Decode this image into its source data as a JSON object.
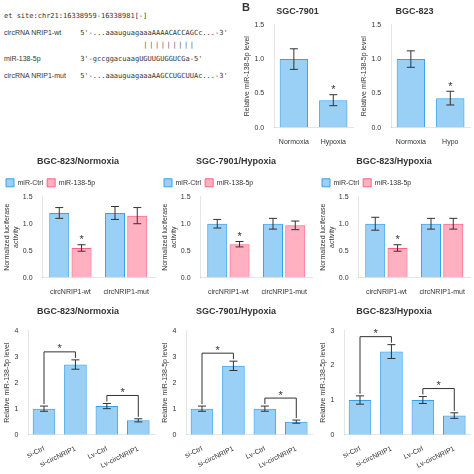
{
  "chart_data": [
    {
      "type": "text",
      "annotations": [
        {
          "text": "et site:chr21:16338959-16338981[-]"
        },
        {
          "label": "circRNA NRIP1-wt",
          "text": "5'-...aaauguagaaaAAAACACCAGCc...-3'"
        },
        {
          "text": "|||||||||"
        },
        {
          "label": "miR-138-5p",
          "text": "3'-gccggacuaagUGUUGUGGUCGa-5'"
        },
        {
          "label": "circRNA NRIP1-mut",
          "text": "5'-...aaauguagaaaAAGCCUGCUUAc...-3'"
        }
      ]
    },
    {
      "type": "bar",
      "title": "SGC-7901",
      "y_label": "Relative miR-138-5p level",
      "categories": [
        "Normoxia",
        "Hypoxia"
      ],
      "values": [
        1.0,
        0.4
      ],
      "errors": [
        0.15,
        0.08
      ],
      "ylim": [
        0,
        1.5
      ],
      "yticks": [
        {
          "value": 0,
          "label": "0.0"
        },
        0.5,
        {
          "value": 1,
          "label": "1.0"
        },
        1.5
      ],
      "grid": false,
      "annotations": [
        {
          "text": "B"
        },
        {
          "text": "*",
          "category": "Hypoxia"
        }
      ]
    },
    {
      "type": "bar",
      "title": "BGC-823",
      "y_label": "Relative miR-138-5p level",
      "categories": [
        "Normoxia",
        "Hypo"
      ],
      "values": [
        1.0,
        0.43
      ],
      "errors": [
        0.12,
        0.1
      ],
      "ylim": [
        0,
        1.5
      ],
      "yticks": [
        {
          "value": 0,
          "label": "0.0"
        },
        0.5,
        {
          "value": 1,
          "label": "1.0"
        },
        1.5
      ],
      "grid": false,
      "annotations": [
        {
          "text": "*",
          "category": "Hypo"
        }
      ]
    },
    {
      "type": "bar",
      "title": "BGC-823/Normoxia",
      "y_label": "Normalized luciferase\nactivity",
      "categories": [
        "circNRIP1-wt",
        "circNRIP1-mut"
      ],
      "series": [
        {
          "name": "miR-Ctrl",
          "values": [
            1.2,
            1.2
          ],
          "errors": [
            0.1,
            0.12
          ]
        },
        {
          "name": "miR-138-5p",
          "values": [
            0.55,
            1.15
          ],
          "errors": [
            0.06,
            0.15
          ]
        }
      ],
      "ylim": [
        0,
        1.5
      ],
      "yticks": [
        {
          "value": 0,
          "label": "0.0"
        },
        0.5,
        {
          "value": 1,
          "label": "1.0"
        },
        1.5
      ],
      "grid": false,
      "legend": "upper left",
      "annotations": [
        {
          "text": "*",
          "category": "circNRIP1-wt",
          "series": "miR-138-5p"
        }
      ]
    },
    {
      "type": "bar",
      "title": "SGC-7901/Hypoxia",
      "y_label": "Normalized luciferase\nactivity",
      "categories": [
        "circNRIP1-wt",
        "circNRIP1-mut"
      ],
      "series": [
        {
          "name": "miR-Ctrl",
          "values": [
            1.0,
            1.0
          ],
          "errors": [
            0.08,
            0.1
          ]
        },
        {
          "name": "miR-138-5p",
          "values": [
            0.62,
            0.97
          ],
          "errors": [
            0.05,
            0.08
          ]
        }
      ],
      "ylim": [
        0,
        1.5
      ],
      "yticks": [
        {
          "value": 0,
          "label": "0.0"
        },
        0.5,
        {
          "value": 1,
          "label": "1.0"
        },
        1.5
      ],
      "grid": false,
      "legend": "upper left",
      "annotations": [
        {
          "text": "*",
          "category": "circNRIP1-wt",
          "series": "miR-138-5p"
        }
      ]
    },
    {
      "type": "bar",
      "title": "BGC-823/Hypoxia",
      "y_label": "Normalized luciferase\nactivity",
      "categories": [
        "circNRIP1-wt",
        "circNRIP1-mut"
      ],
      "series": [
        {
          "name": "miR-Ctrl",
          "values": [
            1.0,
            1.0
          ],
          "errors": [
            0.12,
            0.1
          ]
        },
        {
          "name": "miR-138-5p",
          "values": [
            0.55,
            1.0
          ],
          "errors": [
            0.06,
            0.1
          ]
        }
      ],
      "ylim": [
        0,
        1.5
      ],
      "yticks": [
        {
          "value": 0,
          "label": "0.0"
        },
        0.5,
        {
          "value": 1,
          "label": "1.0"
        },
        1.5
      ],
      "grid": false,
      "legend": "upper left",
      "annotations": [
        {
          "text": "*",
          "category": "circNRIP1-wt",
          "series": "miR-138-5p"
        }
      ]
    },
    {
      "type": "bar",
      "title": "BGC-823/Normoxia",
      "y_label": "Relative miR-138-5p level",
      "categories": [
        "si-Ctrl",
        "si-circNRIP1",
        "Lv-Ctrl",
        "Lv-circNRIP1"
      ],
      "values": [
        1.0,
        2.7,
        1.1,
        0.55
      ],
      "errors": [
        0.1,
        0.18,
        0.1,
        0.06
      ],
      "ylim": [
        0,
        4.0
      ],
      "yticks": [
        0,
        1,
        2,
        3,
        4
      ],
      "grid": false,
      "annotations": [
        {
          "text": "*",
          "bracket": [
            "si-Ctrl",
            "si-circNRIP1"
          ]
        },
        {
          "text": "*",
          "bracket": [
            "Lv-Ctrl",
            "Lv-circNRIP1"
          ]
        }
      ]
    },
    {
      "type": "bar",
      "title": "SGC-7901/Hypoxia",
      "y_label": "Relative miR-138-5p level",
      "categories": [
        "si-Ctrl",
        "si-circNRIP1",
        "Lv-Ctrl",
        "Lv-circNRIP1"
      ],
      "values": [
        1.0,
        2.65,
        1.0,
        0.5
      ],
      "errors": [
        0.1,
        0.18,
        0.1,
        0.06
      ],
      "ylim": [
        0,
        4.0
      ],
      "yticks": [
        0,
        1,
        2,
        3,
        4
      ],
      "grid": false,
      "annotations": [
        {
          "text": "*",
          "bracket": [
            "si-Ctrl",
            "si-circNRIP1"
          ]
        },
        {
          "text": "*",
          "bracket": [
            "Lv-Ctrl",
            "Lv-circNRIP1"
          ]
        }
      ]
    },
    {
      "type": "bar",
      "title": "BGC-823/Hypoxia",
      "y_label": "Relative miR-138-5p level",
      "categories": [
        "si-Ctrl",
        "si-circNRIP1",
        "Lv-Ctrl",
        "Lv-circNRIP1"
      ],
      "values": [
        1.0,
        2.4,
        1.0,
        0.55
      ],
      "errors": [
        0.12,
        0.2,
        0.1,
        0.08
      ],
      "ylim": [
        0,
        3.0
      ],
      "yticks": [
        0,
        1,
        2,
        3
      ],
      "grid": false,
      "annotations": [
        {
          "text": "*",
          "bracket": [
            "si-Ctrl",
            "si-circNRIP1"
          ]
        },
        {
          "text": "*",
          "bracket": [
            "Lv-Ctrl",
            "Lv-circNRIP1"
          ]
        }
      ]
    }
  ]
}
